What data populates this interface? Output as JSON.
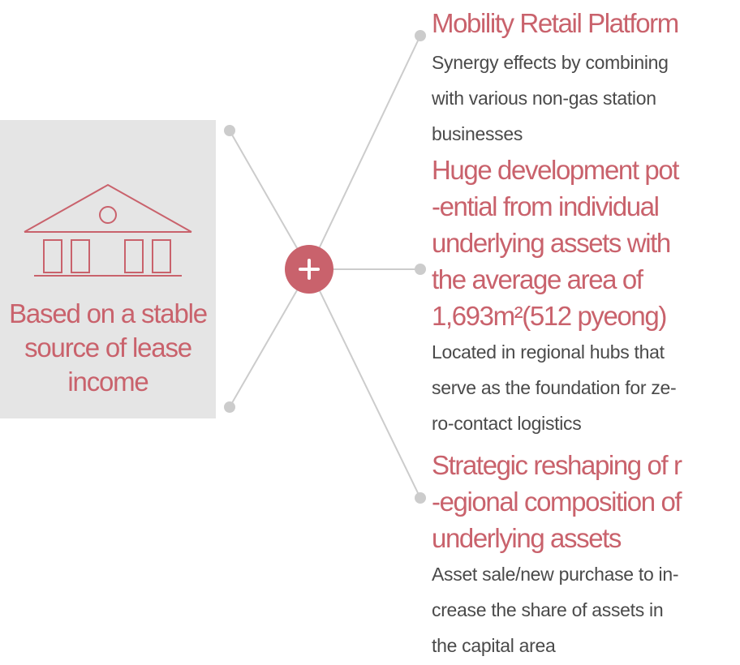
{
  "colors": {
    "accent": "#c9626c",
    "panel_bg": "#e5e5e5",
    "connector": "#cccccc",
    "body_text": "#4a4a4a"
  },
  "left_panel": {
    "icon": "house-icon",
    "label_lines": [
      "Based on a stable",
      "source of lease",
      "income"
    ]
  },
  "hub": {
    "icon": "plus-icon"
  },
  "items": [
    {
      "title": "Mobility Retail Platform",
      "description": "Synergy effects by combining\nwith various non-gas station\nbusinesses"
    },
    {
      "title": "Huge development pot\n-ential from individual\nunderlying assets with\nthe average area of\n1,693m²(512 pyeong)",
      "description": "Located in regional hubs that\nserve as the foundation for ze-\nro-contact logistics"
    },
    {
      "title": "Strategic reshaping of r\n-egional composition of\nunderlying assets",
      "description": "Asset sale/new purchase to in-\ncrease the share of assets in\nthe capital area"
    }
  ]
}
